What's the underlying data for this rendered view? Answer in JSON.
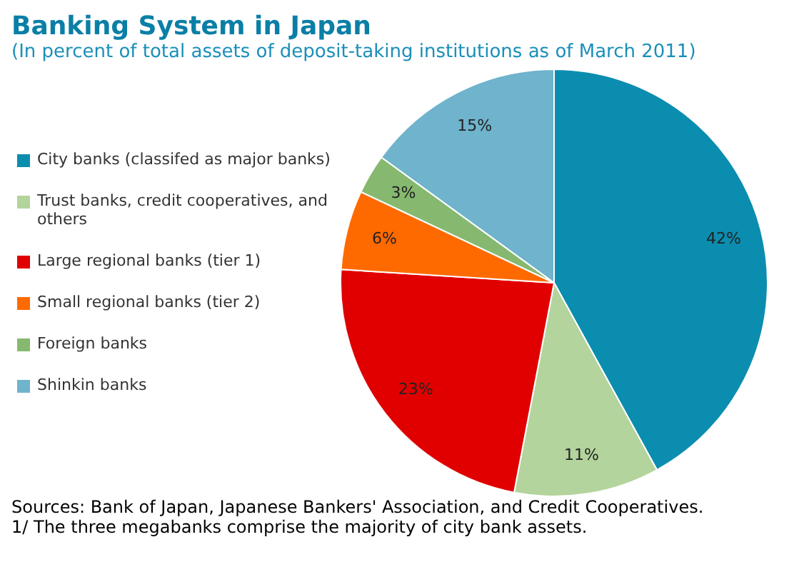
{
  "chart_data": {
    "type": "pie",
    "title": "Banking System in Japan",
    "subtitle": "(In percent of total assets of deposit-taking institutions as of March 2011)",
    "categories": [
      "City banks (classifed as major banks)",
      "Trust banks, credit cooperatives, and others",
      "Large regional banks (tier 1)",
      "Small regional banks (tier 2)",
      "Foreign banks",
      "Shinkin banks"
    ],
    "values": [
      42,
      11,
      23,
      6,
      3,
      15
    ],
    "colors": [
      "#0b8db0",
      "#b3d49c",
      "#e00000",
      "#ff6a00",
      "#86b96f",
      "#6fb3cc"
    ],
    "value_labels": [
      "42%",
      "11%",
      "23%",
      "6%",
      "3%",
      "15%"
    ],
    "legend": "left",
    "annotations": [
      "Sources: Bank of Japan, Japanese Bankers' Association, and Credit Cooperatives.",
      "1/ The three megabanks comprise the majority of city bank assets."
    ]
  }
}
